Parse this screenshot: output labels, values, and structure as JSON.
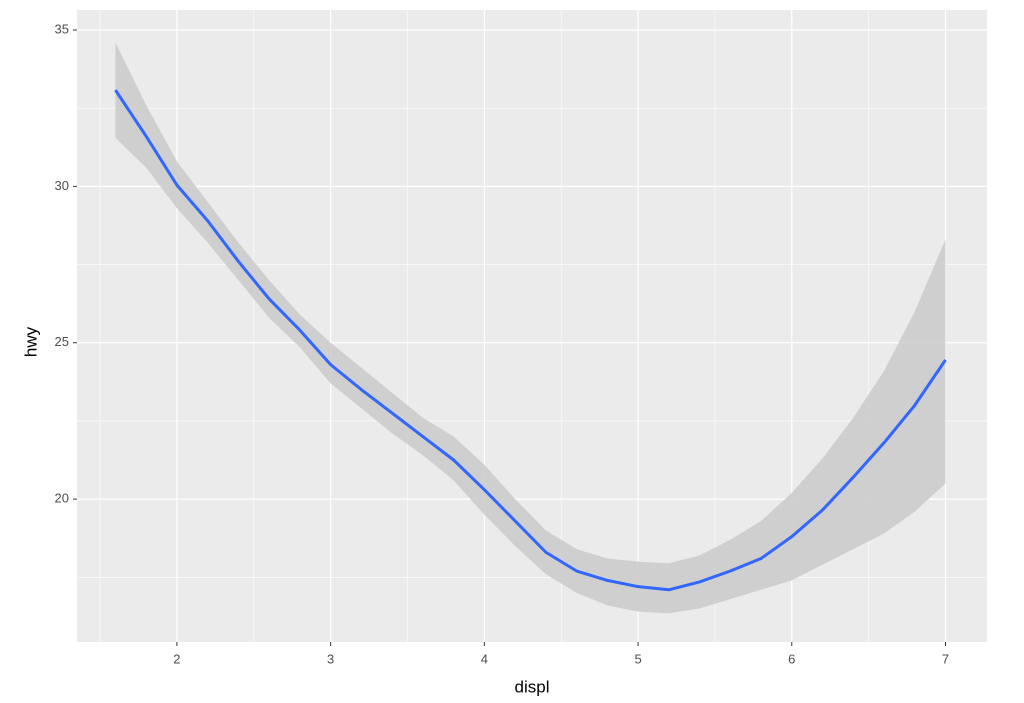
{
  "chart_data": {
    "type": "smooth",
    "x_label": "displ",
    "y_label": "hwy",
    "x": [
      1.6,
      1.8,
      2.0,
      2.2,
      2.4,
      2.6,
      2.8,
      3.0,
      3.2,
      3.4,
      3.6,
      3.8,
      4.0,
      4.2,
      4.4,
      4.6,
      4.8,
      5.0,
      5.2,
      5.4,
      5.6,
      5.8,
      6.0,
      6.2,
      6.4,
      6.6,
      6.8,
      7.0
    ],
    "series": [
      {
        "color": "#3366ff",
        "band_color": "#cccccc",
        "values": [
          33.08,
          31.6,
          30.04,
          28.9,
          27.6,
          26.4,
          25.4,
          24.3,
          23.5,
          22.75,
          22.0,
          21.25,
          20.3,
          19.3,
          18.3,
          17.7,
          17.4,
          17.2,
          17.1,
          17.35,
          17.7,
          18.1,
          18.8,
          19.65,
          20.7,
          21.8,
          23.0,
          24.45
        ],
        "upper": [
          34.6,
          32.6,
          30.8,
          29.5,
          28.2,
          27.0,
          25.9,
          25.0,
          24.2,
          23.4,
          22.6,
          22.0,
          21.1,
          20.0,
          19.0,
          18.4,
          18.1,
          18.0,
          17.95,
          18.2,
          18.7,
          19.3,
          20.2,
          21.3,
          22.6,
          24.1,
          26.0,
          28.3
        ],
        "lower": [
          31.55,
          30.6,
          29.3,
          28.2,
          27.0,
          25.8,
          24.85,
          23.7,
          22.9,
          22.1,
          21.4,
          20.6,
          19.5,
          18.5,
          17.6,
          17.0,
          16.6,
          16.4,
          16.35,
          16.5,
          16.8,
          17.1,
          17.4,
          17.9,
          18.4,
          18.9,
          19.6,
          20.5
        ]
      }
    ],
    "xlim": [
      1.35,
      7.27
    ],
    "ylim": [
      15.43,
      35.64
    ],
    "xticks": [
      2,
      3,
      4,
      5,
      6,
      7
    ],
    "yticks": [
      20,
      25,
      30,
      35
    ],
    "x_minor_ticks": [
      1.5,
      2.5,
      3.5,
      4.5,
      5.5,
      6.5
    ],
    "y_minor_ticks": [
      17.5,
      22.5,
      27.5,
      32.5
    ],
    "grid": true,
    "panel_color": "#ebebeb"
  }
}
